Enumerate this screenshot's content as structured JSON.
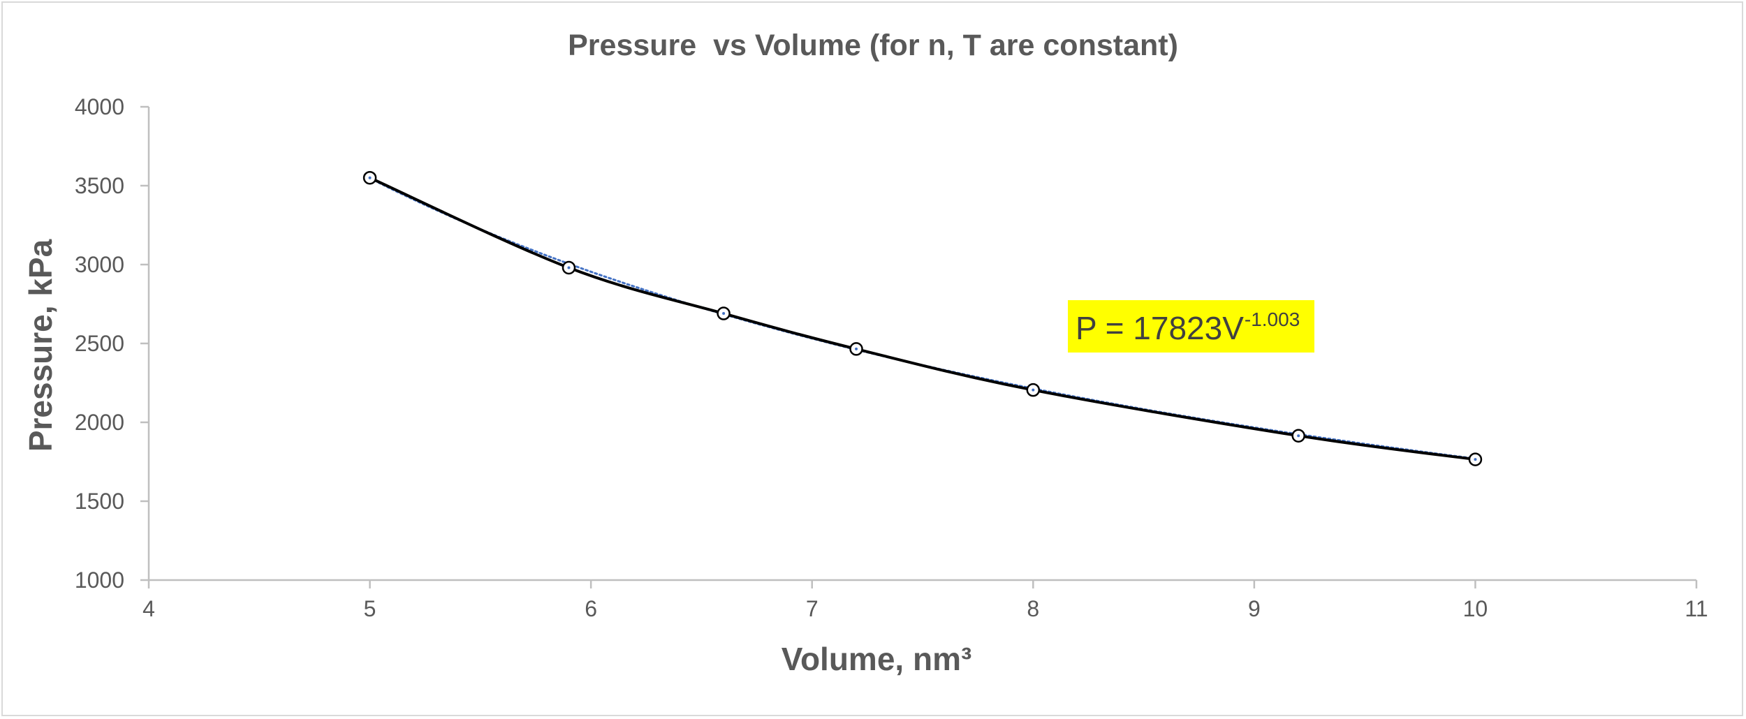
{
  "chart_data": {
    "type": "scatter",
    "title": "Pressure  vs Volume (for n, T are constant)",
    "xlabel": "Volume, nm³",
    "ylabel": "Pressure, kPa",
    "xlim": [
      4,
      11
    ],
    "ylim": [
      1000,
      4000
    ],
    "x_ticks": [
      4,
      5,
      6,
      7,
      8,
      9,
      10,
      11
    ],
    "y_ticks": [
      1000,
      1500,
      2000,
      2500,
      3000,
      3500,
      4000
    ],
    "grid": false,
    "legend": "none",
    "series": [
      {
        "x": [
          5,
          5.9,
          6.6,
          7.2,
          8,
          9.2,
          10
        ],
        "y": [
          3550,
          2980,
          2690,
          2465,
          2205,
          1915,
          1765
        ],
        "marker": "open-circle",
        "line": "smoothed",
        "color": "#000000"
      }
    ],
    "trendline": {
      "type": "power",
      "coefficient": 17823,
      "exponent": -1.003,
      "color": "#4472c4",
      "style": "dotted",
      "equation_base": "P = 17823V",
      "equation_exponent": "-1.003",
      "equation_background": "#ffff00"
    }
  }
}
